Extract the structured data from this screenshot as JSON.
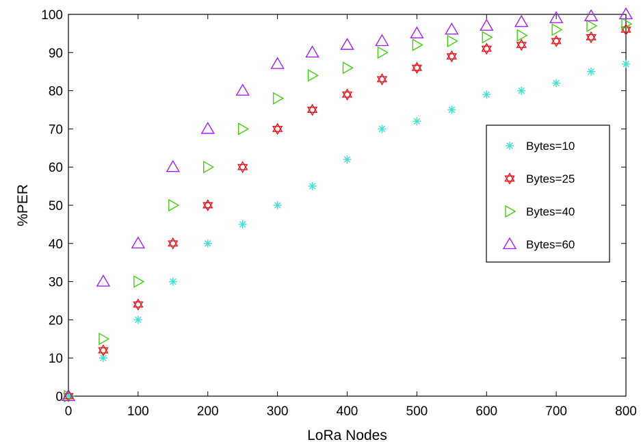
{
  "chart_data": {
    "type": "scatter",
    "xlabel": "LoRa Nodes",
    "ylabel": "%PER",
    "xlim": [
      0,
      800
    ],
    "ylim": [
      0,
      100
    ],
    "xticks": [
      "0",
      "100",
      "200",
      "300",
      "400",
      "500",
      "600",
      "700",
      "800"
    ],
    "yticks": [
      "0",
      "10",
      "20",
      "30",
      "40",
      "50",
      "60",
      "70",
      "80",
      "90",
      "100"
    ],
    "grid": false,
    "legend_position": "center-right",
    "x": [
      0,
      50,
      100,
      150,
      200,
      250,
      300,
      350,
      400,
      450,
      500,
      550,
      600,
      650,
      700,
      750,
      800
    ],
    "series": [
      {
        "name": "Bytes=10",
        "marker": "asterisk",
        "color": "#40E0D0",
        "values": [
          0,
          10,
          20,
          30,
          40,
          45,
          50,
          55,
          62,
          70,
          72,
          75,
          79,
          80,
          82,
          85,
          87
        ]
      },
      {
        "name": "Bytes=25",
        "marker": "hexagram",
        "color": "#E8141B",
        "values": [
          0,
          12,
          24,
          40,
          50,
          60,
          70,
          75,
          79,
          83,
          86,
          89,
          91,
          92,
          93,
          94,
          96
        ]
      },
      {
        "name": "Bytes=40",
        "marker": "triangle-right",
        "color": "#44CC11",
        "values": [
          0,
          15,
          30,
          50,
          60,
          70,
          78,
          84,
          86,
          90,
          92,
          93,
          94,
          94.5,
          96,
          97,
          97.5
        ]
      },
      {
        "name": "Bytes=60",
        "marker": "triangle-up",
        "color": "#A020F0",
        "values": [
          0,
          30,
          40,
          60,
          70,
          80,
          87,
          90,
          92,
          93,
          95,
          96,
          97,
          98,
          99,
          99.5,
          100
        ]
      }
    ]
  }
}
